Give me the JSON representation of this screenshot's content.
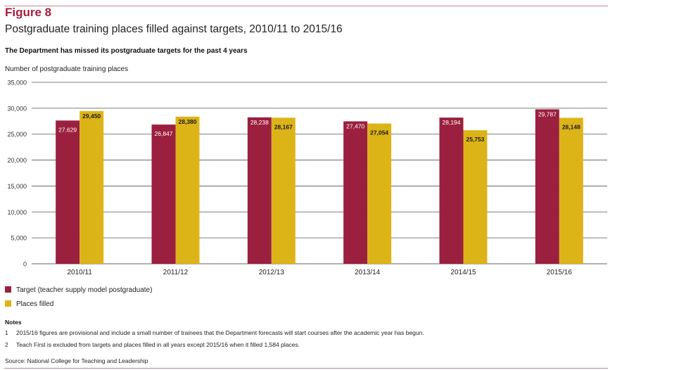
{
  "figure": {
    "label": "Figure 8",
    "title": "Postgraduate training places filled against targets, 2010/11 to 2015/16",
    "subtitle": "The Department has missed its postgraduate targets for the past 4 years"
  },
  "chart_data": {
    "type": "bar",
    "ylabel": "Number of postgraduate training places",
    "xlabel": "",
    "categories": [
      "2010/11",
      "2011/12",
      "2012/13",
      "2013/14",
      "2014/15",
      "2015/16"
    ],
    "series": [
      {
        "name": "Target (teacher supply model postgraduate)",
        "color": "#9b1f3e",
        "values": [
          27629,
          26847,
          28238,
          27470,
          28194,
          29787
        ],
        "labels": [
          "27,629",
          "26,847",
          "28,238",
          "27,470",
          "28,194",
          "29,787"
        ]
      },
      {
        "name": "Places filled",
        "color": "#dcb418",
        "values": [
          29450,
          28380,
          28167,
          27054,
          25753,
          28148
        ],
        "labels": [
          "29,450",
          "28,380",
          "28,167",
          "27,054",
          "25,753",
          "28,148"
        ]
      }
    ],
    "ylim": [
      0,
      35000
    ],
    "yticks": [
      0,
      5000,
      10000,
      15000,
      20000,
      25000,
      30000,
      35000
    ],
    "ytick_labels": [
      "0",
      "5,000",
      "10,000",
      "15,000",
      "20,000",
      "25,000",
      "30,000",
      "35,000"
    ],
    "grid": true,
    "legend_position": "bottom-left"
  },
  "notes": {
    "title": "Notes",
    "items": [
      {
        "num": "1",
        "text": "2015/16 figures are provisional and include a small number of trainees that the Department forecasts will start courses after the academic year has begun."
      },
      {
        "num": "2",
        "text": "Teach First is excluded from targets and places filled in all years except 2015/16 when it filled 1,584 places."
      }
    ]
  },
  "source": "Source: National College for Teaching and Leadership"
}
